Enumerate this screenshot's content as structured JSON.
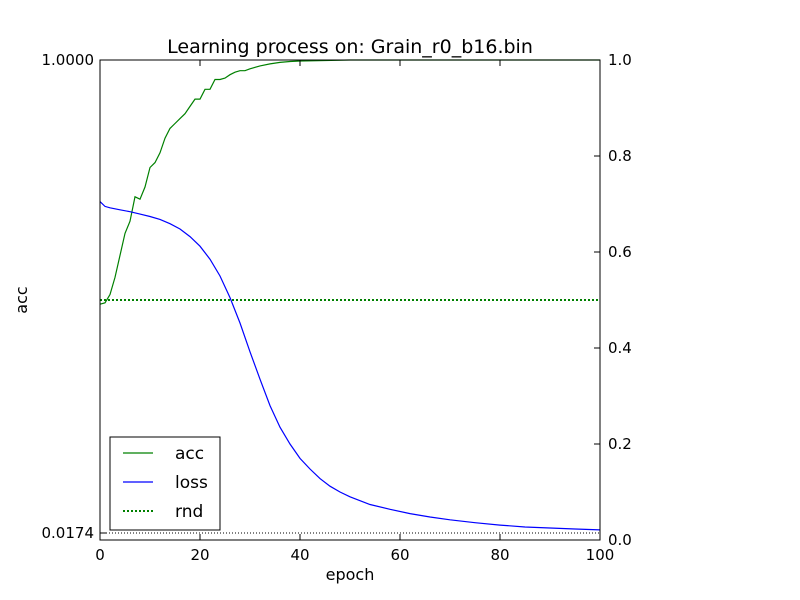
{
  "chart_data": {
    "type": "line",
    "title": "Learning process on: Grain_r0_b16.bin",
    "xlabel": "epoch",
    "ylabel": "acc",
    "xlim": [
      0,
      100
    ],
    "ylim_left": [
      0.0174,
      1.0
    ],
    "ylim_right": [
      0.0,
      1.0
    ],
    "x_ticks": [
      "0",
      "20",
      "40",
      "60",
      "80",
      "100"
    ],
    "left_ticks": [
      "0.0174",
      "1.0000"
    ],
    "right_ticks": [
      "0.0",
      "0.2",
      "0.4",
      "0.6",
      "0.8",
      "1.0"
    ],
    "legend_position": "lower-left",
    "grid": false,
    "series": [
      {
        "name": "acc",
        "axis": "left",
        "color": "#008000",
        "style": "solid",
        "x": [
          0,
          1,
          2,
          3,
          4,
          5,
          6,
          7,
          8,
          9,
          10,
          11,
          12,
          13,
          14,
          15,
          16,
          17,
          18,
          19,
          20,
          21,
          22,
          23,
          24,
          25,
          26,
          27,
          28,
          29,
          30,
          32,
          34,
          36,
          38,
          40,
          45,
          50,
          60,
          70,
          80,
          90,
          100
        ],
        "y": [
          0.5,
          0.503,
          0.52,
          0.555,
          0.6,
          0.645,
          0.67,
          0.72,
          0.715,
          0.74,
          0.78,
          0.79,
          0.81,
          0.84,
          0.86,
          0.87,
          0.88,
          0.89,
          0.905,
          0.92,
          0.92,
          0.94,
          0.94,
          0.96,
          0.96,
          0.963,
          0.97,
          0.975,
          0.978,
          0.978,
          0.982,
          0.988,
          0.992,
          0.995,
          0.997,
          0.998,
          0.999,
          1.0,
          1.0,
          1.0,
          1.0,
          1.0,
          1.0
        ]
      },
      {
        "name": "loss",
        "axis": "right",
        "color": "#0000ff",
        "style": "solid",
        "x": [
          0,
          1,
          2,
          4,
          6,
          8,
          10,
          12,
          14,
          16,
          18,
          20,
          22,
          24,
          26,
          28,
          30,
          32,
          34,
          36,
          38,
          40,
          42,
          44,
          46,
          48,
          50,
          54,
          58,
          62,
          66,
          70,
          75,
          80,
          85,
          90,
          95,
          100
        ],
        "y": [
          0.705,
          0.695,
          0.692,
          0.688,
          0.684,
          0.679,
          0.674,
          0.668,
          0.659,
          0.648,
          0.632,
          0.612,
          0.585,
          0.55,
          0.505,
          0.452,
          0.392,
          0.335,
          0.28,
          0.235,
          0.2,
          0.17,
          0.148,
          0.128,
          0.112,
          0.1,
          0.09,
          0.074,
          0.064,
          0.055,
          0.048,
          0.042,
          0.036,
          0.031,
          0.027,
          0.025,
          0.023,
          0.021
        ]
      },
      {
        "name": "rnd",
        "axis": "right",
        "color": "#008000",
        "style": "dotted",
        "x": [
          0,
          100
        ],
        "y": [
          0.5,
          0.5
        ]
      }
    ],
    "baseline": {
      "axis": "left",
      "y": 0.0174,
      "color": "#000000",
      "style": "dotted"
    }
  }
}
